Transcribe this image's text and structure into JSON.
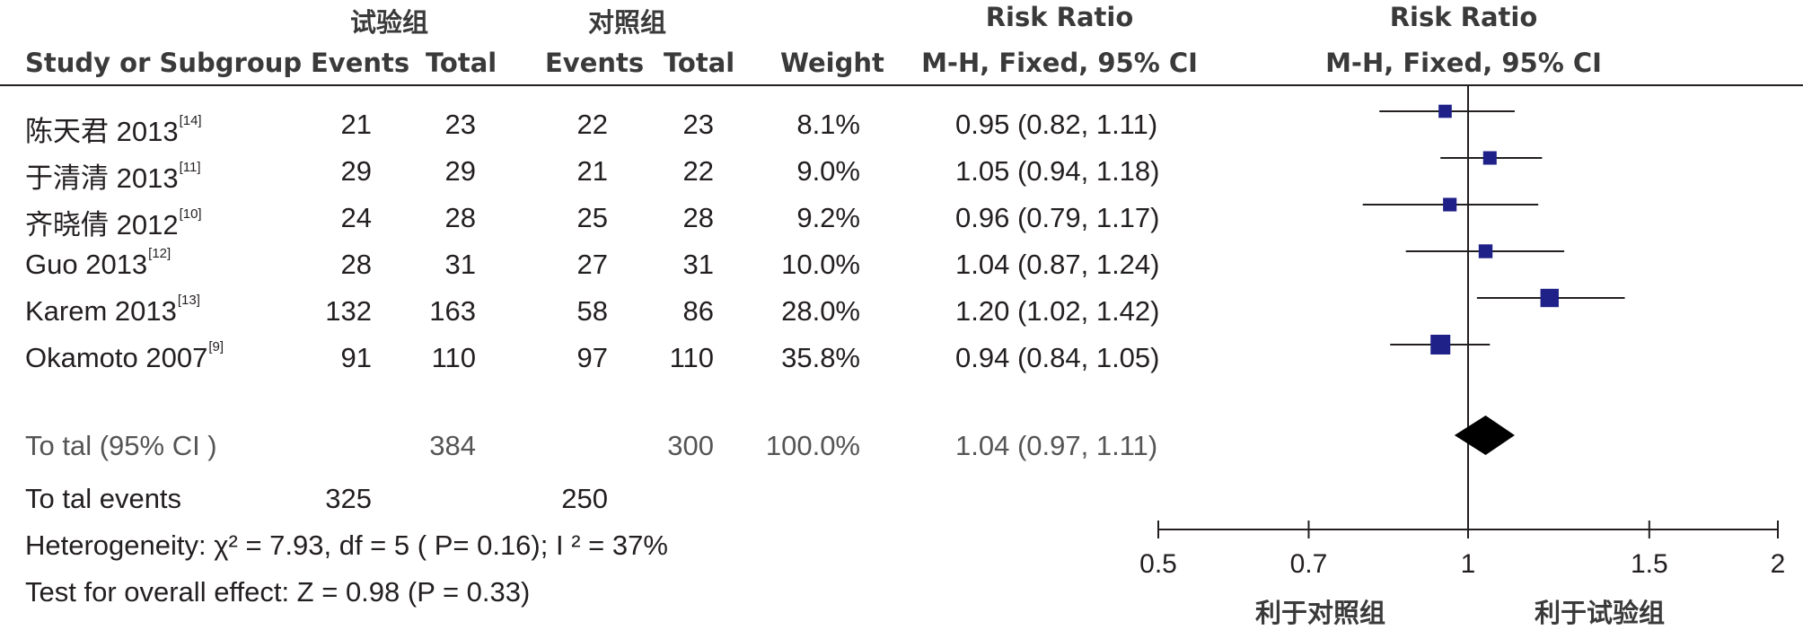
{
  "header": {
    "group_experimental": "试验组",
    "group_control": "对照组",
    "risk_ratio_left": "Risk Ratio",
    "risk_ratio_right": "Risk Ratio",
    "col_study": "Study or Subgroup",
    "col_exp_events": "Events",
    "col_exp_total": "Total",
    "col_ctrl_events": "Events",
    "col_ctrl_total": "Total",
    "col_weight": "Weight",
    "col_method_left": "M-H, Fixed, 95% CI",
    "col_method_right": "M-H, Fixed, 95% CI"
  },
  "studies": [
    {
      "name": "陈天君 2013",
      "ref": "[14]",
      "exp_events": "21",
      "exp_total": "23",
      "ctrl_events": "22",
      "ctrl_total": "23",
      "weight": "8.1%",
      "ci_text": "0.95 (0.82, 1.11)"
    },
    {
      "name": "于清清 2013",
      "ref": "[11]",
      "exp_events": "29",
      "exp_total": "29",
      "ctrl_events": "21",
      "ctrl_total": "22",
      "weight": "9.0%",
      "ci_text": "1.05 (0.94, 1.18)"
    },
    {
      "name": "齐晓倩 2012",
      "ref": "[10]",
      "exp_events": "24",
      "exp_total": "28",
      "ctrl_events": "25",
      "ctrl_total": "28",
      "weight": "9.2%",
      "ci_text": "0.96 (0.79, 1.17)"
    },
    {
      "name": "Guo 2013",
      "ref": "[12]",
      "exp_events": "28",
      "exp_total": "31",
      "ctrl_events": "27",
      "ctrl_total": "31",
      "weight": "10.0%",
      "ci_text": "1.04 (0.87, 1.24)"
    },
    {
      "name": "Karem 2013",
      "ref": "[13]",
      "exp_events": "132",
      "exp_total": "163",
      "ctrl_events": "58",
      "ctrl_total": "86",
      "weight": "28.0%",
      "ci_text": "1.20 (1.02, 1.42)"
    },
    {
      "name": "Okamoto 2007",
      "ref": "[9]",
      "exp_events": "91",
      "exp_total": "110",
      "ctrl_events": "97",
      "ctrl_total": "110",
      "weight": "35.8%",
      "ci_text": "0.94 (0.84, 1.05)"
    }
  ],
  "total": {
    "label": "To tal (95% CI )",
    "exp_total": "384",
    "ctrl_total": "300",
    "weight": "100.0%",
    "ci_text": "1.04 (0.97, 1.11)"
  },
  "total_events": {
    "label": "To tal events",
    "exp": "325",
    "ctrl": "250"
  },
  "heterogeneity": "Heterogeneity:  χ² = 7.93, df = 5 (  P= 0.16); I ² = 37%",
  "overall_effect": "Test for overall effect: Z = 0.98 (P = 0.33)",
  "axis": {
    "ticks": [
      {
        "value": 0.5,
        "label": "0.5"
      },
      {
        "value": 0.7,
        "label": "0.7"
      },
      {
        "value": 1,
        "label": "1"
      },
      {
        "value": 1.5,
        "label": "1.5"
      },
      {
        "value": 2,
        "label": "2"
      }
    ],
    "favours_control": "利于对照组",
    "favours_experimental": "利于试验组"
  },
  "colors": {
    "study_marker": "#1f2088",
    "diamond": "#000000",
    "lines": "#231f20"
  },
  "chart_data": {
    "type": "forest",
    "scale": "log",
    "xlim": [
      0.5,
      2
    ],
    "null_value": 1,
    "series": [
      {
        "name": "陈天君 2013",
        "rr": 0.95,
        "lo": 0.82,
        "hi": 1.11,
        "weight": 8.1
      },
      {
        "name": "于清清 2013",
        "rr": 1.05,
        "lo": 0.94,
        "hi": 1.18,
        "weight": 9.0
      },
      {
        "name": "齐晓倩 2012",
        "rr": 0.96,
        "lo": 0.79,
        "hi": 1.17,
        "weight": 9.2
      },
      {
        "name": "Guo 2013",
        "rr": 1.04,
        "lo": 0.87,
        "hi": 1.24,
        "weight": 10.0
      },
      {
        "name": "Karem 2013",
        "rr": 1.2,
        "lo": 1.02,
        "hi": 1.42,
        "weight": 28.0
      },
      {
        "name": "Okamoto 2007",
        "rr": 0.94,
        "lo": 0.84,
        "hi": 1.05,
        "weight": 35.8
      }
    ],
    "pooled": {
      "rr": 1.04,
      "lo": 0.97,
      "hi": 1.11
    }
  }
}
